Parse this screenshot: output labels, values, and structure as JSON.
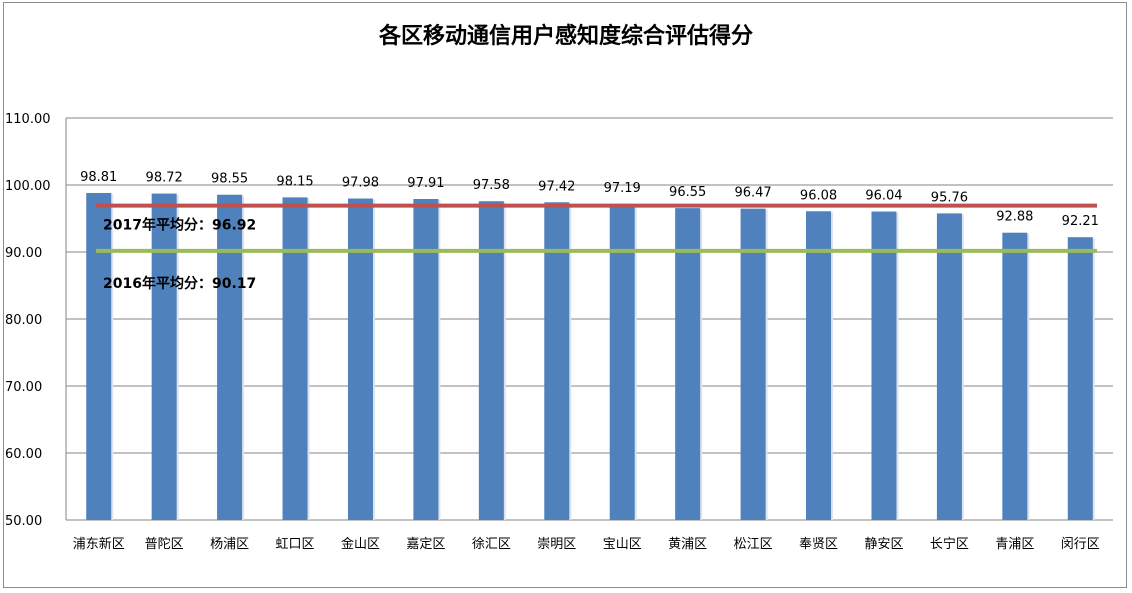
{
  "chart_data": {
    "type": "bar",
    "title": "各区移动通信用户感知度综合评估得分",
    "xlabel": "",
    "ylabel": "",
    "ylim": [
      50,
      110
    ],
    "yticks": [
      "50.00",
      "60.00",
      "70.00",
      "80.00",
      "90.00",
      "100.00",
      "110.00"
    ],
    "categories": [
      "浦东新区",
      "普陀区",
      "杨浦区",
      "虹口区",
      "金山区",
      "嘉定区",
      "徐汇区",
      "崇明区",
      "宝山区",
      "黄浦区",
      "松江区",
      "奉贤区",
      "静安区",
      "长宁区",
      "青浦区",
      "闵行区"
    ],
    "series": [
      {
        "values": [
          98.81,
          98.72,
          98.55,
          98.15,
          97.98,
          97.91,
          97.58,
          97.42,
          97.19,
          96.55,
          96.47,
          96.08,
          96.04,
          95.76,
          92.88,
          92.21
        ],
        "labels": [
          "98.81",
          "98.72",
          "98.55",
          "98.15",
          "97.98",
          "97.91",
          "97.58",
          "97.42",
          "97.19",
          "96.55",
          "96.47",
          "96.08",
          "96.04",
          "95.76",
          "92.88",
          "92.21"
        ]
      }
    ],
    "reference_lines": [
      {
        "label": "2017年平均分：96.92",
        "value": 96.92,
        "color": "#c0504d"
      },
      {
        "label": "2016年平均分：90.17",
        "value": 90.17,
        "color": "#9bbb59"
      }
    ],
    "grid": true,
    "legend": "none",
    "bar_color": "#4f81bd"
  }
}
